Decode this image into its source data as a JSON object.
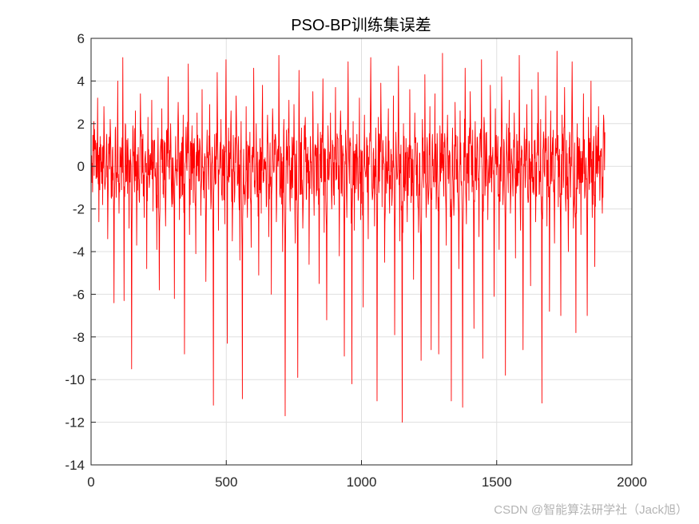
{
  "watermark": "CSDN @智能算法研学社（Jack旭）",
  "chart_data": {
    "type": "line",
    "title": "PSO-BP训练集误差",
    "xlabel": "",
    "ylabel": "",
    "xlim": [
      0,
      2000
    ],
    "ylim": [
      -14,
      6
    ],
    "xticks": [
      0,
      500,
      1000,
      1500,
      2000
    ],
    "yticks": [
      6,
      4,
      2,
      0,
      -2,
      -4,
      -6,
      -8,
      -10,
      -12,
      -14
    ],
    "grid": true,
    "line_color": "#ff0000",
    "series": [
      {
        "name": "",
        "x_start": 1,
        "x_end": 1900,
        "values": [
          0.4,
          -1.2,
          2.1,
          0.8,
          -0.5,
          3.2,
          -2.6,
          1.4,
          0.2,
          -1.8,
          2.8,
          -0.9,
          1.1,
          -3.4,
          0.6,
          2.2,
          -1.5,
          0.9,
          -6.4,
          1.7,
          -0.3,
          4.0,
          -2.2,
          0.5,
          -1.1,
          5.1,
          -6.3,
          2.0,
          -0.7,
          1.3,
          -2.9,
          0.8,
          -9.5,
          1.9,
          -0.4,
          2.6,
          -3.7,
          0.2,
          -1.6,
          3.4,
          -0.8,
          1.5,
          -2.4,
          0.7,
          -4.8,
          2.3,
          -1.0,
          0.6,
          3.1,
          -2.1,
          1.2,
          -0.5,
          -3.9,
          1.8,
          -5.8,
          0.9,
          2.7,
          -1.3,
          0.3,
          -2.8,
          1.6,
          4.2,
          -0.6,
          2.0,
          -1.9,
          0.4,
          -6.2,
          1.4,
          -0.9,
          3.0,
          -2.5,
          0.7,
          -1.4,
          2.4,
          -8.8,
          1.1,
          -0.2,
          4.8,
          -3.2,
          0.5,
          1.9,
          -1.7,
          0.8,
          -4.1,
          2.5,
          -0.7,
          1.3,
          -2.3,
          3.6,
          -1.1,
          0.6,
          -5.4,
          1.7,
          -0.4,
          2.9,
          -2.0,
          0.9,
          -11.2,
          1.5,
          -0.8,
          4.4,
          -3.0,
          0.3,
          2.2,
          -1.6,
          1.0,
          -2.7,
          5.0,
          -8.3,
          1.8,
          -0.5,
          2.6,
          -3.5,
          0.7,
          -1.2,
          3.3,
          -0.9,
          1.4,
          -4.4,
          2.1,
          -10.9,
          0.8,
          -1.8,
          2.8,
          -2.4,
          0.5,
          1.6,
          -3.8,
          0.9,
          4.6,
          -1.3,
          2.0,
          -0.6,
          -5.1,
          1.3,
          -2.2,
          3.8,
          -0.7,
          0.4,
          -1.9,
          2.4,
          -3.3,
          1.1,
          -6.0,
          2.7,
          -0.3,
          1.5,
          -2.6,
          0.8,
          5.2,
          -1.4,
          0.6,
          -4.0,
          2.2,
          -11.7,
          1.7,
          -0.8,
          3.1,
          -2.1,
          0.4,
          -1.0,
          2.9,
          -3.6,
          1.2,
          -9.9,
          4.5,
          -0.5,
          1.8,
          -2.9,
          0.7,
          2.3,
          -1.5,
          0.9,
          -4.6,
          1.4,
          -0.3,
          3.5,
          -2.3,
          0.6,
          -1.2,
          2.0,
          -5.5,
          1.6,
          -0.7,
          4.1,
          -3.1,
          0.8,
          -7.2,
          1.9,
          -0.4,
          2.5,
          -2.0,
          1.0,
          -1.8,
          3.7,
          -0.6,
          1.3,
          -4.2,
          2.6,
          -0.9,
          0.5,
          -8.9,
          1.7,
          -2.4,
          4.9,
          -0.8,
          1.1,
          -10.2,
          2.1,
          -3.0,
          0.4,
          1.5,
          -1.6,
          3.2,
          -2.5,
          0.7,
          -6.6,
          2.4,
          -0.5,
          1.2,
          -3.4,
          0.9,
          5.1,
          -1.1,
          0.6,
          -2.8,
          1.8,
          -11.0,
          2.3,
          -0.7,
          3.9,
          -1.9,
          0.5,
          -4.5,
          1.4,
          -0.2,
          2.7,
          -2.2,
          0.8,
          -1.5,
          3.3,
          -7.9,
          1.6,
          -0.6,
          4.7,
          -3.5,
          1.0,
          -12.0,
          2.0,
          -0.9,
          1.3,
          -2.6,
          0.4,
          3.6,
          -1.7,
          0.8,
          -5.3,
          2.5,
          -0.4,
          1.1,
          -3.1,
          0.6,
          -9.1,
          2.2,
          -1.0,
          4.3,
          -2.4,
          0.9,
          -1.3,
          2.8,
          -8.6,
          1.5,
          -0.5,
          3.4,
          -2.0,
          0.7,
          -8.8,
          1.9,
          -0.3,
          5.3,
          -1.4,
          1.2,
          -3.7,
          2.4,
          -0.8,
          0.5,
          -11.0,
          1.8,
          -2.3,
          3.0,
          -0.6,
          1.4,
          -4.8,
          2.6,
          -0.9,
          -11.3,
          1.1,
          4.6,
          -2.7,
          0.6,
          -1.6,
          3.5,
          -0.4,
          1.7,
          -7.6,
          2.1,
          -1.1,
          0.8,
          -3.3,
          1.3,
          5.0,
          -9.0,
          2.3,
          -0.7,
          1.6,
          -2.5,
          0.5,
          3.8,
          -1.2,
          0.9,
          -6.1,
          2.7,
          -0.4,
          1.4,
          -3.9,
          0.8,
          4.2,
          -1.8,
          1.1,
          -9.8,
          2.0,
          -0.6,
          3.1,
          -2.2,
          0.4,
          -1.4,
          2.5,
          -4.3,
          1.5,
          -0.9,
          5.2,
          -3.0,
          0.7,
          -8.6,
          1.8,
          -0.5,
          2.9,
          -1.7,
          1.0,
          -5.6,
          3.6,
          -0.8,
          1.2,
          -2.6,
          0.6,
          4.4,
          -1.3,
          2.2,
          -11.1,
          0.9,
          -0.4,
          3.3,
          -2.8,
          1.4,
          -6.8,
          2.6,
          -0.7,
          1.7,
          -3.6,
          0.5,
          5.4,
          -1.9,
          0.8,
          -7.0,
          2.4,
          -1.0,
          3.7,
          -2.1,
          0.6,
          -4.0,
          1.6,
          -0.3,
          4.9,
          -2.9,
          1.1,
          -7.8,
          2.0,
          -0.6,
          1.3,
          -3.2,
          0.7,
          3.4,
          -1.5,
          0.4,
          -7.0,
          2.3,
          -0.8,
          4.0,
          -2.4,
          1.2,
          -4.7,
          1.9,
          -0.5,
          2.8,
          -1.6,
          0.8,
          -2.2,
          2.4,
          1.6
        ]
      }
    ]
  }
}
